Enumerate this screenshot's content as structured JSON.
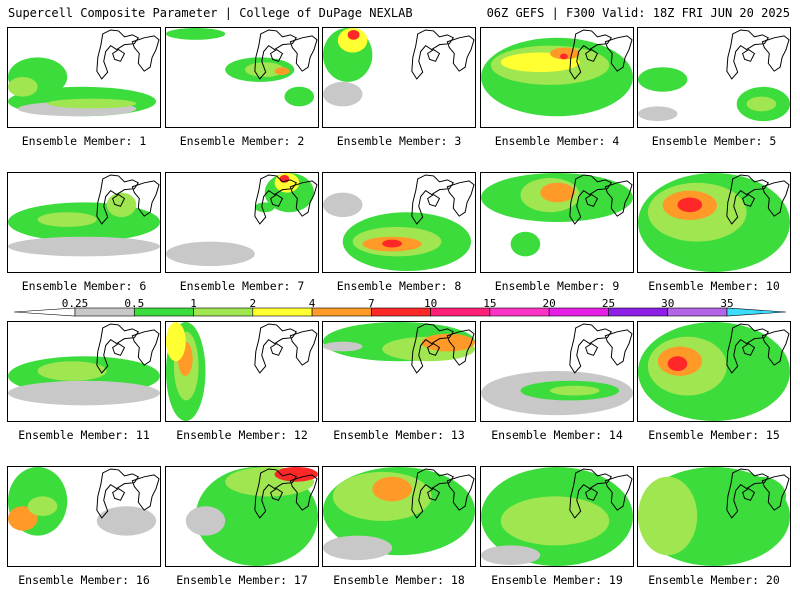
{
  "header": {
    "title": "Supercell Composite Parameter | College of DuPage NEXLAB",
    "run_info": "06Z GEFS | F300 Valid: 18Z FRI JUN 20 2025"
  },
  "legend": {
    "ticks": [
      "0.25",
      "0.5",
      "1",
      "2",
      "4",
      "7",
      "10",
      "15",
      "20",
      "25",
      "30",
      "35"
    ],
    "colors": [
      "#c8c8c8",
      "#3cdc3c",
      "#a0e650",
      "#ffff32",
      "#ff9a28",
      "#ff2828",
      "#ff1e78",
      "#ff32c8",
      "#e61ee6",
      "#8c1ee6",
      "#b464e6",
      "#3cdcff"
    ]
  },
  "members": [
    "Ensemble Member: 1",
    "Ensemble Member: 2",
    "Ensemble Member: 3",
    "Ensemble Member: 4",
    "Ensemble Member: 5",
    "Ensemble Member: 6",
    "Ensemble Member: 7",
    "Ensemble Member: 8",
    "Ensemble Member: 9",
    "Ensemble Member: 10",
    "Ensemble Member: 11",
    "Ensemble Member: 12",
    "Ensemble Member: 13",
    "Ensemble Member: 14",
    "Ensemble Member: 15",
    "Ensemble Member: 16",
    "Ensemble Member: 17",
    "Ensemble Member: 18",
    "Ensemble Member: 19",
    "Ensemble Member: 20"
  ]
}
